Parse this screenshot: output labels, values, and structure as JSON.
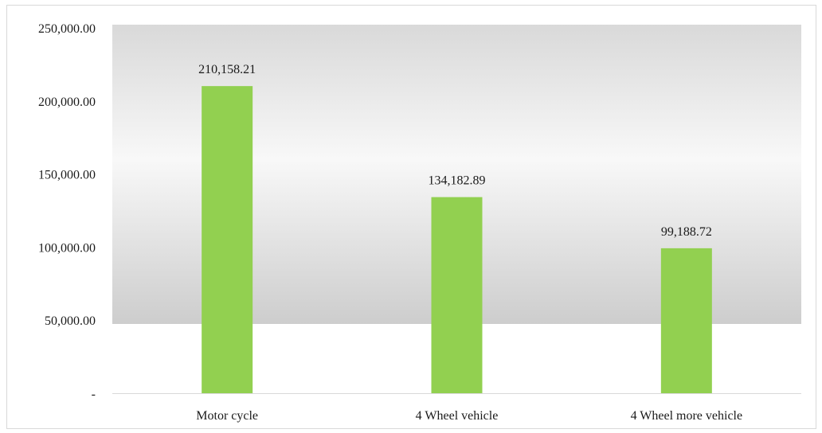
{
  "chart_data": {
    "type": "bar",
    "categories": [
      "Motor cycle",
      "4 Wheel vehicle",
      "4 Wheel more vehicle"
    ],
    "values": [
      210158.21,
      134182.89,
      99188.72
    ],
    "value_labels": [
      "210,158.21",
      "134,182.89",
      "99,188.72"
    ],
    "ylim": [
      0,
      250000
    ],
    "yticks": [
      0,
      50000,
      100000,
      150000,
      200000,
      250000
    ],
    "ytick_labels": [
      "-",
      "50,000.00",
      "100,000.00",
      "150,000.00",
      "200,000.00",
      "250,000.00"
    ],
    "title": "",
    "xlabel": "",
    "ylabel": "",
    "legend": false,
    "grid": false,
    "colors": {
      "bar": "#92d050",
      "plot_gradient_top": "#d9d9d9",
      "plot_gradient_mid": "#f7f7f7",
      "plot_gradient_bottom": "#cfcfcf",
      "axis": "#d9d9d9"
    }
  }
}
